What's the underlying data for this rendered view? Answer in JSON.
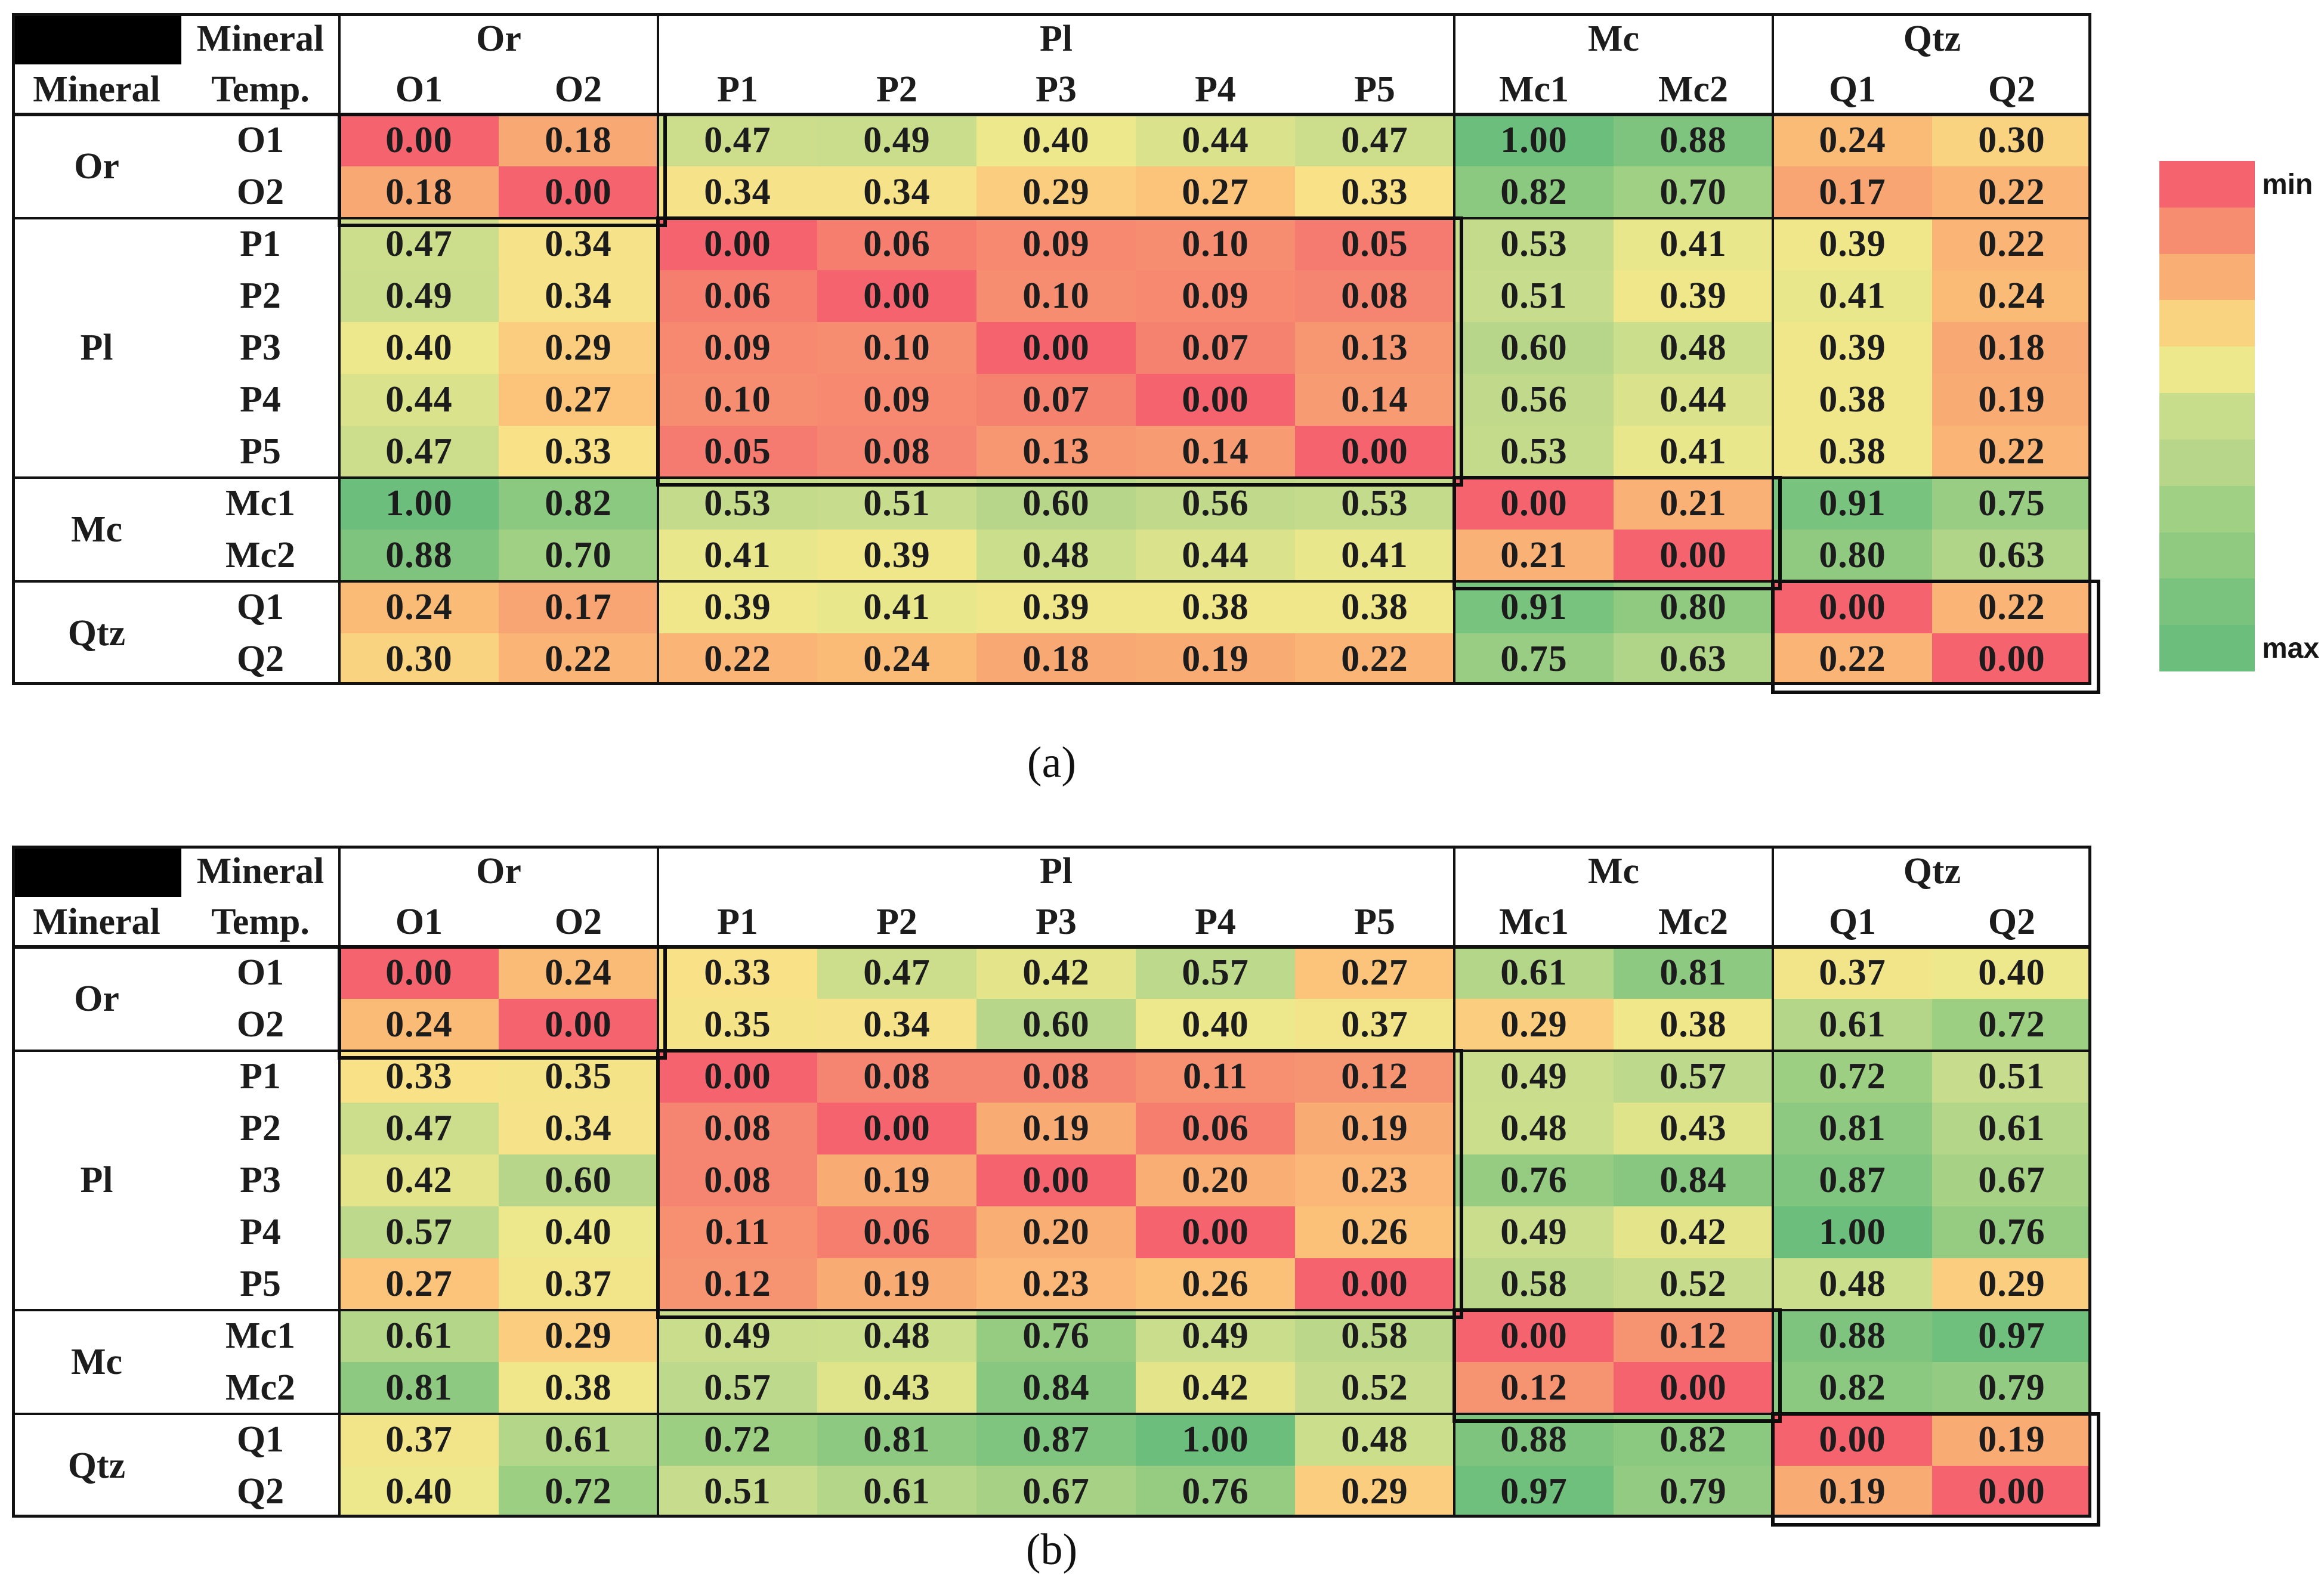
{
  "header_labels": {
    "corner_top": "Mineral",
    "mineral": "Mineral",
    "temp": "Temp."
  },
  "groups": [
    {
      "name": "Or",
      "samples": [
        "O1",
        "O2"
      ]
    },
    {
      "name": "Pl",
      "samples": [
        "P1",
        "P2",
        "P3",
        "P4",
        "P5"
      ]
    },
    {
      "name": "Mc",
      "samples": [
        "Mc1",
        "Mc2"
      ]
    },
    {
      "name": "Qtz",
      "samples": [
        "Q1",
        "Q2"
      ]
    }
  ],
  "legend": {
    "min_label": "min",
    "max_label": "max",
    "bands": 11
  },
  "colors": {
    "border": "#121212",
    "cell_text": "#1c1c1c",
    "redaction": "#000000",
    "background": "#ffffff"
  },
  "colormap": [
    {
      "v": 0.0,
      "c": "#F4636E"
    },
    {
      "v": 0.06,
      "c": "#F57E6F"
    },
    {
      "v": 0.12,
      "c": "#F69471"
    },
    {
      "v": 0.2,
      "c": "#F9AE74"
    },
    {
      "v": 0.27,
      "c": "#FBC47A"
    },
    {
      "v": 0.33,
      "c": "#F8E187"
    },
    {
      "v": 0.4,
      "c": "#EDE88B"
    },
    {
      "v": 0.47,
      "c": "#CCDE8C"
    },
    {
      "v": 0.55,
      "c": "#C2DA8C"
    },
    {
      "v": 0.62,
      "c": "#B2D588"
    },
    {
      "v": 0.7,
      "c": "#A0D084"
    },
    {
      "v": 0.8,
      "c": "#90CA81"
    },
    {
      "v": 0.9,
      "c": "#79C37E"
    },
    {
      "v": 1.0,
      "c": "#6CBE7C"
    }
  ],
  "chart_data": [
    {
      "type": "heatmap",
      "caption": "(a)",
      "legend_min": "min",
      "legend_max": "max",
      "value_range": [
        0,
        1
      ],
      "labels": [
        "O1",
        "O2",
        "P1",
        "P2",
        "P3",
        "P4",
        "P5",
        "Mc1",
        "Mc2",
        "Q1",
        "Q2"
      ],
      "matrix": [
        [
          0.0,
          0.18,
          0.47,
          0.49,
          0.4,
          0.44,
          0.47,
          1.0,
          0.88,
          0.24,
          0.3
        ],
        [
          0.18,
          0.0,
          0.34,
          0.34,
          0.29,
          0.27,
          0.33,
          0.82,
          0.7,
          0.17,
          0.22
        ],
        [
          0.47,
          0.34,
          0.0,
          0.06,
          0.09,
          0.1,
          0.05,
          0.53,
          0.41,
          0.39,
          0.22
        ],
        [
          0.49,
          0.34,
          0.06,
          0.0,
          0.1,
          0.09,
          0.08,
          0.51,
          0.39,
          0.41,
          0.24
        ],
        [
          0.4,
          0.29,
          0.09,
          0.1,
          0.0,
          0.07,
          0.13,
          0.6,
          0.48,
          0.39,
          0.18
        ],
        [
          0.44,
          0.27,
          0.1,
          0.09,
          0.07,
          0.0,
          0.14,
          0.56,
          0.44,
          0.38,
          0.19
        ],
        [
          0.47,
          0.33,
          0.05,
          0.08,
          0.13,
          0.14,
          0.0,
          0.53,
          0.41,
          0.38,
          0.22
        ],
        [
          1.0,
          0.82,
          0.53,
          0.51,
          0.6,
          0.56,
          0.53,
          0.0,
          0.21,
          0.91,
          0.75
        ],
        [
          0.88,
          0.7,
          0.41,
          0.39,
          0.48,
          0.44,
          0.41,
          0.21,
          0.0,
          0.8,
          0.63
        ],
        [
          0.24,
          0.17,
          0.39,
          0.41,
          0.39,
          0.38,
          0.38,
          0.91,
          0.8,
          0.0,
          0.22
        ],
        [
          0.3,
          0.22,
          0.22,
          0.24,
          0.18,
          0.19,
          0.22,
          0.75,
          0.63,
          0.22,
          0.0
        ]
      ]
    },
    {
      "type": "heatmap",
      "caption": "(b)",
      "legend_min": "min",
      "legend_max": "max",
      "value_range": [
        0,
        1
      ],
      "labels": [
        "O1",
        "O2",
        "P1",
        "P2",
        "P3",
        "P4",
        "P5",
        "Mc1",
        "Mc2",
        "Q1",
        "Q2"
      ],
      "matrix": [
        [
          0.0,
          0.24,
          0.33,
          0.47,
          0.42,
          0.57,
          0.27,
          0.61,
          0.81,
          0.37,
          0.4
        ],
        [
          0.24,
          0.0,
          0.35,
          0.34,
          0.6,
          0.4,
          0.37,
          0.29,
          0.38,
          0.61,
          0.72
        ],
        [
          0.33,
          0.35,
          0.0,
          0.08,
          0.08,
          0.11,
          0.12,
          0.49,
          0.57,
          0.72,
          0.51
        ],
        [
          0.47,
          0.34,
          0.08,
          0.0,
          0.19,
          0.06,
          0.19,
          0.48,
          0.43,
          0.81,
          0.61
        ],
        [
          0.42,
          0.6,
          0.08,
          0.19,
          0.0,
          0.2,
          0.23,
          0.76,
          0.84,
          0.87,
          0.67
        ],
        [
          0.57,
          0.4,
          0.11,
          0.06,
          0.2,
          0.0,
          0.26,
          0.49,
          0.42,
          1.0,
          0.76
        ],
        [
          0.27,
          0.37,
          0.12,
          0.19,
          0.23,
          0.26,
          0.0,
          0.58,
          0.52,
          0.48,
          0.29
        ],
        [
          0.61,
          0.29,
          0.49,
          0.48,
          0.76,
          0.49,
          0.58,
          0.0,
          0.12,
          0.88,
          0.97
        ],
        [
          0.81,
          0.38,
          0.57,
          0.43,
          0.84,
          0.42,
          0.52,
          0.12,
          0.0,
          0.82,
          0.79
        ],
        [
          0.37,
          0.61,
          0.72,
          0.81,
          0.87,
          1.0,
          0.48,
          0.88,
          0.82,
          0.0,
          0.19
        ],
        [
          0.4,
          0.72,
          0.51,
          0.61,
          0.67,
          0.76,
          0.29,
          0.97,
          0.79,
          0.19,
          0.0
        ]
      ]
    }
  ]
}
